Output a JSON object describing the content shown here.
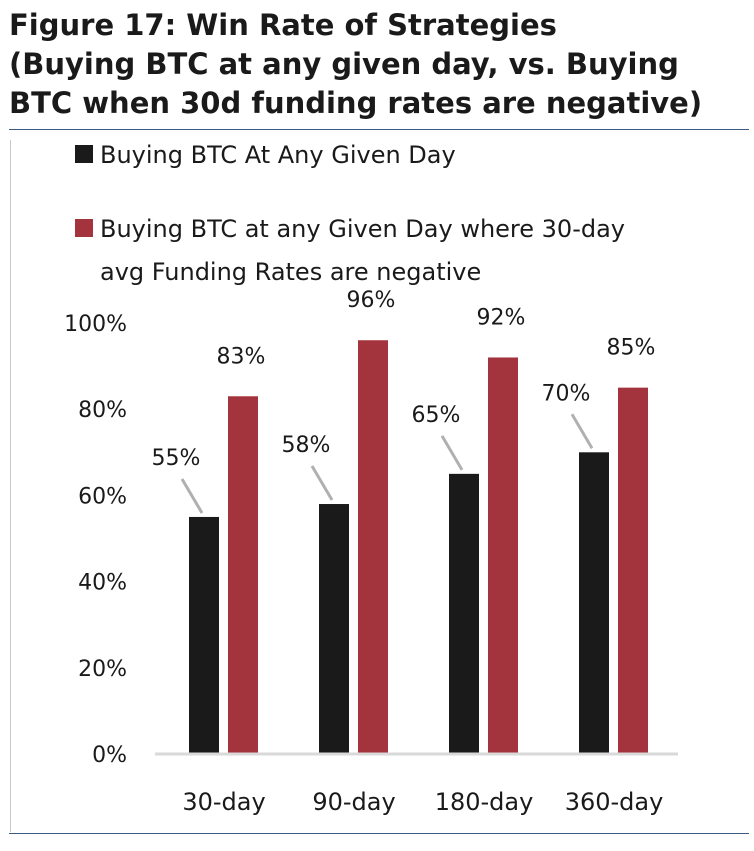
{
  "figure": {
    "title_lines": [
      "Figure 17: Win Rate of Strategies",
      "(Buying BTC at any given day, vs. Buying",
      "BTC when 30d funding rates are negative)"
    ]
  },
  "colors": {
    "series_1": "#1a1a1a",
    "series_2": "#a3333c",
    "axis": "#d9d9d9",
    "leader": "#b0b0b0",
    "rule": "#3d5a80"
  },
  "chart_data": {
    "type": "bar",
    "title": "Figure 17: Win Rate of Strategies (Buying BTC at any given day, vs. Buying BTC when 30d funding rates are negative)",
    "categories": [
      "30-day",
      "90-day",
      "180-day",
      "360-day"
    ],
    "series": [
      {
        "name": "Buying BTC At Any Given Day",
        "legend_lines": [
          "Buying BTC At Any Given Day"
        ],
        "values": [
          55,
          58,
          65,
          70
        ],
        "labels": [
          "55%",
          "58%",
          "65%",
          "70%"
        ]
      },
      {
        "name": "Buying BTC at any Given Day where 30-day avg Funding Rates are negative",
        "legend_lines": [
          "Buying BTC at any Given Day where 30-day",
          "avg Funding Rates are negative"
        ],
        "values": [
          83,
          96,
          92,
          85
        ],
        "labels": [
          "83%",
          "96%",
          "92%",
          "85%"
        ]
      }
    ],
    "ylim": [
      0,
      100
    ],
    "yticks": [
      "0%",
      "20%",
      "40%",
      "60%",
      "80%",
      "100%"
    ],
    "xlabel": "",
    "ylabel": "",
    "grid": false,
    "legend_position": "top-left"
  }
}
